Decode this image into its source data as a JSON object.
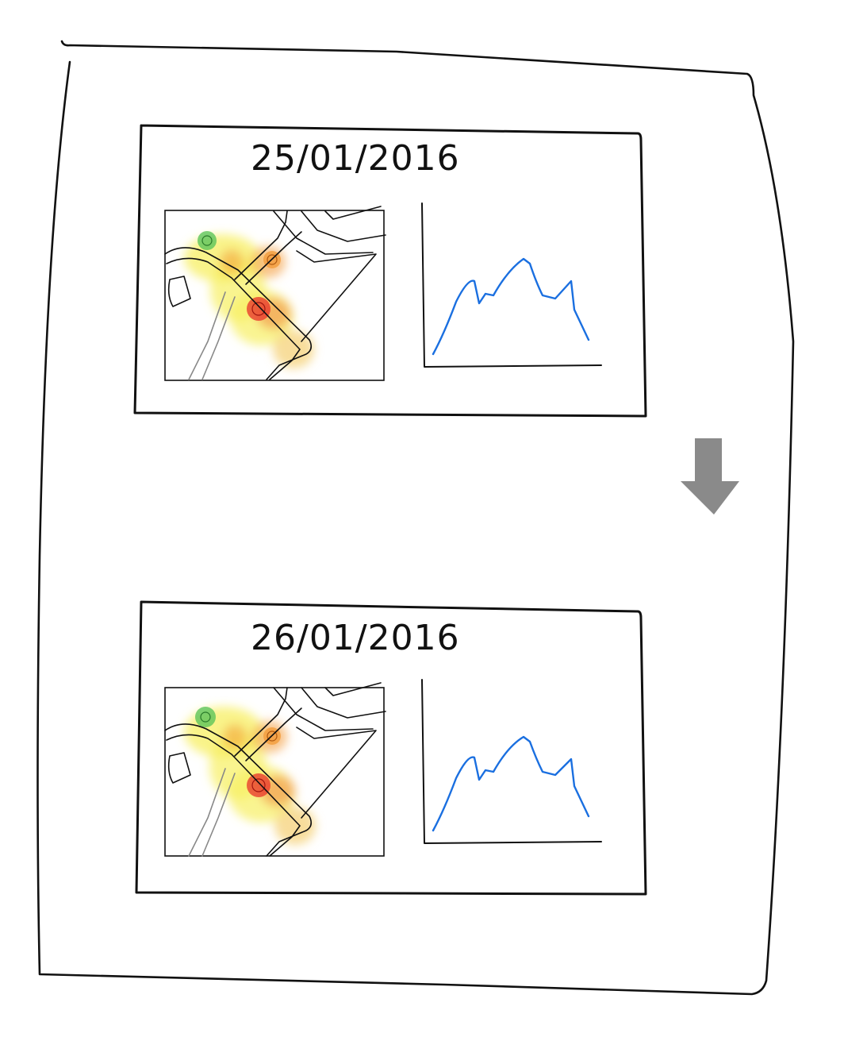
{
  "frames": [
    {
      "date": "25/01/2016"
    },
    {
      "date": "26/01/2016"
    }
  ],
  "colors": {
    "heat_low": "#f7ef62",
    "heat_mid": "#f39c3b",
    "heat_high": "#e8322a",
    "heat_start": "#5cc45a",
    "line": "#1a6fe0",
    "arrow": "#8a8a8a",
    "ink": "#111111"
  },
  "icons": {
    "transition": "down-arrow-icon"
  }
}
